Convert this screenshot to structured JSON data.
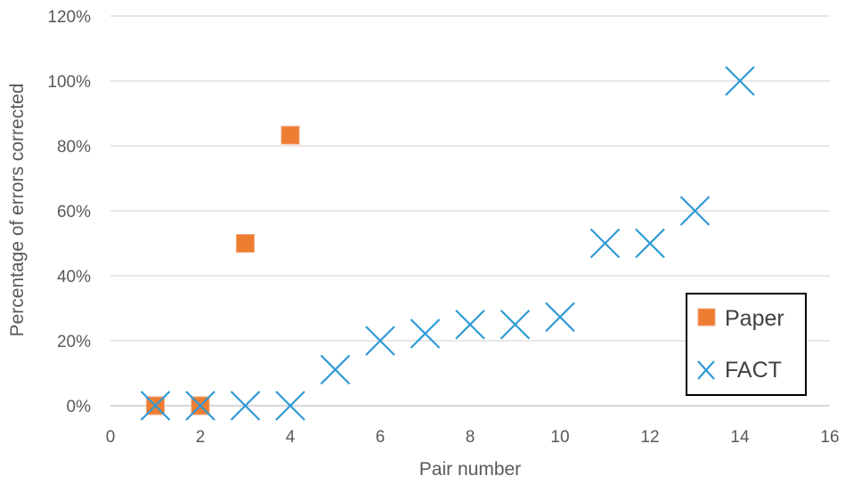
{
  "chart_data": {
    "type": "scatter",
    "title": "",
    "xlabel": "Pair number",
    "ylabel": "Percentage of errors corrected",
    "xlim": [
      0,
      16
    ],
    "ylim": [
      0,
      120
    ],
    "x_ticks": [
      0,
      2,
      4,
      6,
      8,
      10,
      12,
      14,
      16
    ],
    "y_ticks": [
      0,
      20,
      40,
      60,
      80,
      100,
      120
    ],
    "y_tick_format": "percent",
    "grid": {
      "horizontal": true,
      "vertical": false
    },
    "legend_position": "right",
    "series": [
      {
        "name": "Paper",
        "marker": "square",
        "color": "#ED7D31",
        "points": [
          [
            1,
            0
          ],
          [
            2,
            0
          ],
          [
            3,
            50
          ],
          [
            4,
            83.3
          ]
        ]
      },
      {
        "name": "FACT",
        "marker": "x",
        "color": "#2E9AD6",
        "points": [
          [
            1,
            0
          ],
          [
            2,
            0
          ],
          [
            3,
            0
          ],
          [
            4,
            0
          ],
          [
            5,
            11.1
          ],
          [
            6,
            20
          ],
          [
            7,
            22.2
          ],
          [
            8,
            25
          ],
          [
            9,
            25
          ],
          [
            10,
            27.3
          ],
          [
            11,
            50
          ],
          [
            12,
            50
          ],
          [
            13,
            60
          ],
          [
            14,
            100
          ]
        ]
      }
    ]
  }
}
